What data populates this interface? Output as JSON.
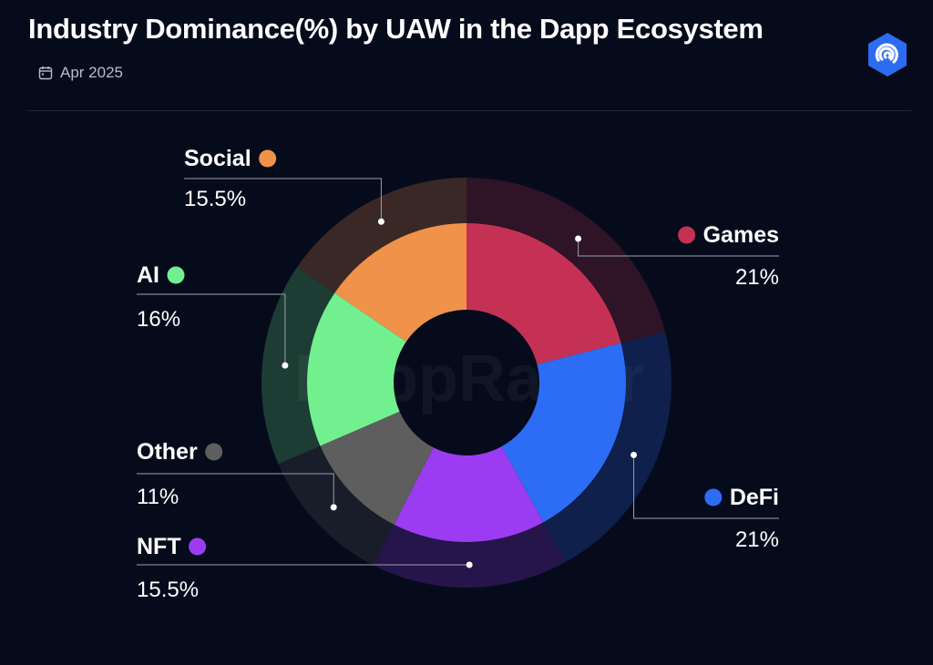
{
  "header": {
    "title": "Industry Dominance(%) by UAW in the Dapp Ecosystem",
    "date": "Apr 2025",
    "date_icon": "calendar-icon",
    "logo_icon": "dappradar-logo-icon"
  },
  "watermark": "DappRadar",
  "chart_data": {
    "type": "pie",
    "title": "Industry Dominance(%) by UAW in the Dapp Ecosystem",
    "series": [
      {
        "name": "Games",
        "value": 21,
        "label": "21%",
        "color": "#c53154"
      },
      {
        "name": "DeFi",
        "value": 21,
        "label": "21%",
        "color": "#2d6cf5"
      },
      {
        "name": "NFT",
        "value": 15.5,
        "label": "15.5%",
        "color": "#9b3cf3"
      },
      {
        "name": "Other",
        "value": 11,
        "label": "11%",
        "color": "#5e5e5e"
      },
      {
        "name": "AI",
        "value": 16,
        "label": "16%",
        "color": "#72f08f"
      },
      {
        "name": "Social",
        "value": 15.5,
        "label": "15.5%",
        "color": "#f0924a"
      }
    ],
    "legend_placement": "around-chart"
  }
}
